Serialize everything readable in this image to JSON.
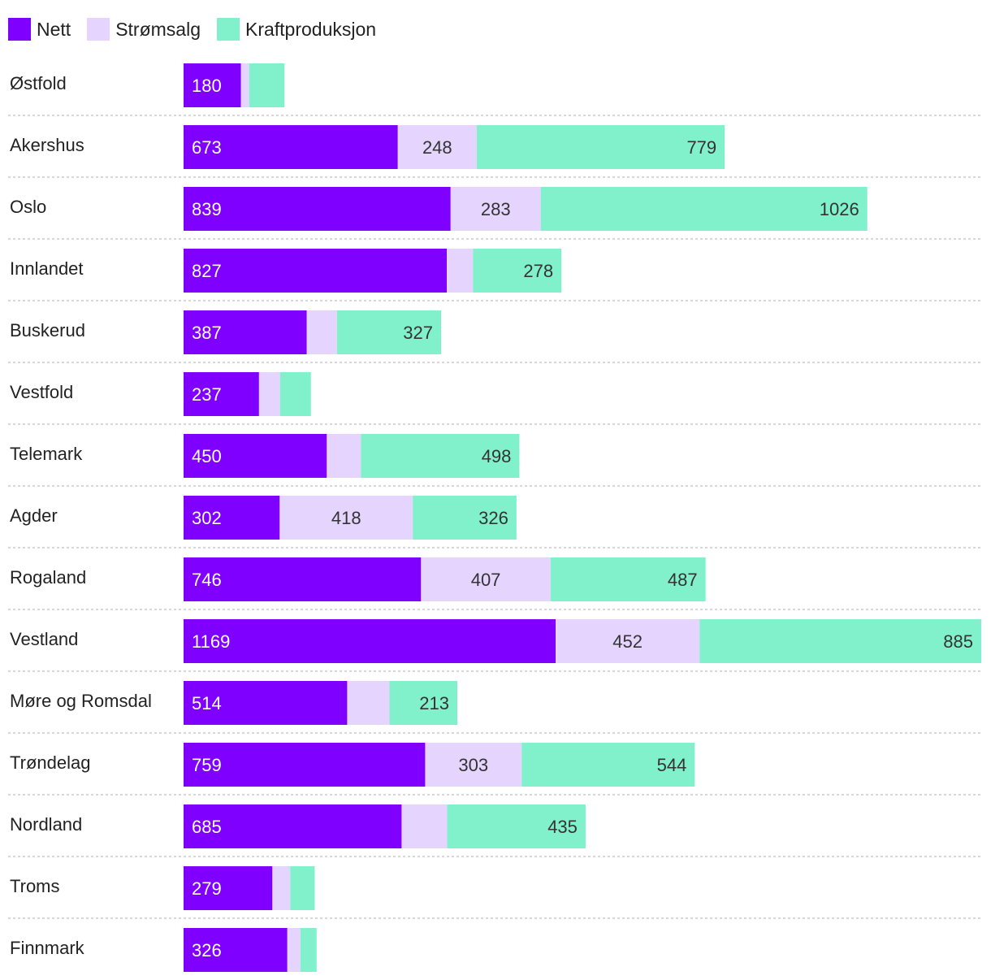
{
  "legend": [
    {
      "label": "Nett",
      "color": "#8000ff"
    },
    {
      "label": "Strømsalg",
      "color": "#e5d4fd"
    },
    {
      "label": "Kraftproduksjon",
      "color": "#81f1cc"
    }
  ],
  "chart_data": {
    "type": "bar",
    "orientation": "horizontal",
    "stacked": true,
    "title": "",
    "xlabel": "",
    "ylabel": "",
    "grid": false,
    "legend_position": "top-left",
    "xlim": [
      0,
      2506
    ],
    "categories": [
      "Østfold",
      "Akershus",
      "Oslo",
      "Innlandet",
      "Buskerud",
      "Vestfold",
      "Telemark",
      "Agder",
      "Rogaland",
      "Vestland",
      "Møre og Romsdal",
      "Trøndelag",
      "Nordland",
      "Troms",
      "Finnmark"
    ],
    "series": [
      {
        "name": "Nett",
        "color": "#8000ff",
        "values": [
          180,
          673,
          839,
          827,
          387,
          237,
          450,
          302,
          746,
          1169,
          514,
          759,
          685,
          279,
          326
        ]
      },
      {
        "name": "Strømsalg",
        "color": "#e5d4fd",
        "values": [
          26,
          248,
          283,
          82,
          95,
          66,
          107,
          418,
          407,
          452,
          133,
          303,
          143,
          56,
          41
        ]
      },
      {
        "name": "Kraftproduksjon",
        "color": "#81f1cc",
        "values": [
          111,
          779,
          1026,
          278,
          327,
          97,
          498,
          326,
          487,
          885,
          213,
          544,
          435,
          77,
          51
        ]
      }
    ],
    "labels": [
      [
        "180",
        "",
        ""
      ],
      [
        "673",
        "248",
        "779"
      ],
      [
        "839",
        "283",
        "1026"
      ],
      [
        "827",
        "",
        "278"
      ],
      [
        "387",
        "",
        "327"
      ],
      [
        "237",
        "",
        ""
      ],
      [
        "450",
        "",
        "498"
      ],
      [
        "302",
        "418",
        "326"
      ],
      [
        "746",
        "407",
        "487"
      ],
      [
        "1169",
        "452",
        "885"
      ],
      [
        "514",
        "",
        "213"
      ],
      [
        "759",
        "303",
        "544"
      ],
      [
        "685",
        "",
        "435"
      ],
      [
        "279",
        "",
        ""
      ],
      [
        "326",
        "",
        ""
      ]
    ]
  }
}
